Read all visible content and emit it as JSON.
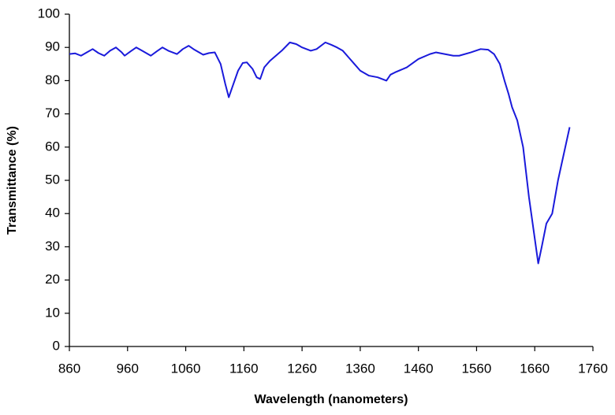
{
  "chart_data": {
    "type": "line",
    "x_label": "Wavelength (nanometers)",
    "y_label": "Transmittance (%)",
    "x": [
      860,
      870,
      880,
      890,
      900,
      910,
      920,
      930,
      940,
      950,
      955,
      965,
      975,
      985,
      1000,
      1010,
      1020,
      1030,
      1045,
      1055,
      1065,
      1075,
      1090,
      1100,
      1110,
      1120,
      1128,
      1134,
      1140,
      1150,
      1158,
      1165,
      1175,
      1182,
      1188,
      1195,
      1205,
      1215,
      1225,
      1239,
      1250,
      1260,
      1275,
      1285,
      1300,
      1310,
      1320,
      1330,
      1340,
      1350,
      1360,
      1375,
      1390,
      1405,
      1412,
      1420,
      1440,
      1460,
      1480,
      1490,
      1505,
      1520,
      1530,
      1550,
      1567,
      1580,
      1590,
      1600,
      1608,
      1615,
      1621,
      1630,
      1640,
      1650,
      1658,
      1666,
      1672,
      1680,
      1690,
      1700,
      1710,
      1720
    ],
    "series": [
      {
        "name": "Transmittance",
        "color": "#1a1adb",
        "values": [
          88,
          88.2,
          87.5,
          88.5,
          89.5,
          88.3,
          87.5,
          89,
          90,
          88.5,
          87.5,
          88.8,
          90,
          89,
          87.5,
          88.8,
          90,
          89,
          88,
          89.5,
          90.5,
          89.3,
          87.8,
          88.3,
          88.5,
          85,
          79,
          75,
          78,
          83,
          85.3,
          85.5,
          83.5,
          81,
          80.5,
          84,
          86,
          87.5,
          89,
          91.5,
          91,
          90,
          89,
          89.5,
          91.5,
          90.8,
          90,
          89,
          87,
          85,
          83,
          81.5,
          81,
          80,
          81.8,
          82.5,
          84,
          86.5,
          88,
          88.5,
          88,
          87.5,
          87.5,
          88.5,
          89.5,
          89.3,
          88,
          85,
          80,
          76,
          72,
          68,
          60,
          45,
          35,
          25,
          30,
          37,
          40,
          50,
          58,
          66
        ]
      }
    ],
    "xlim": [
      860,
      1760
    ],
    "xticks": [
      860,
      960,
      1060,
      1160,
      1260,
      1360,
      1460,
      1560,
      1660,
      1760
    ],
    "ylim": [
      0,
      100
    ],
    "yticks": [
      0,
      10,
      20,
      30,
      40,
      50,
      60,
      70,
      80,
      90,
      100
    ],
    "grid": false
  }
}
